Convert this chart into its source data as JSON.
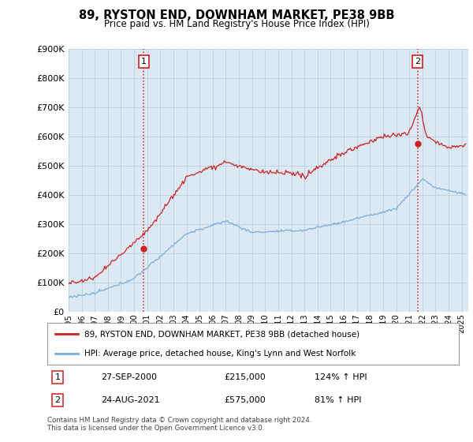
{
  "title": "89, RYSTON END, DOWNHAM MARKET, PE38 9BB",
  "subtitle": "Price paid vs. HM Land Registry's House Price Index (HPI)",
  "ylim": [
    0,
    900000
  ],
  "xlim_start": 1995.0,
  "xlim_end": 2025.5,
  "chart_bg_color": "#dce9f5",
  "fig_bg_color": "#ffffff",
  "hpi_line_color": "#7aaed6",
  "price_line_color": "#cc2222",
  "vline_color": "#cc2222",
  "transaction1_x": 2000.74,
  "transaction1_y": 215000,
  "transaction2_x": 2021.64,
  "transaction2_y": 575000,
  "legend_red_label": "89, RYSTON END, DOWNHAM MARKET, PE38 9BB (detached house)",
  "legend_blue_label": "HPI: Average price, detached house, King's Lynn and West Norfolk",
  "table_row1": [
    "1",
    "27-SEP-2000",
    "£215,000",
    "124% ↑ HPI"
  ],
  "table_row2": [
    "2",
    "24-AUG-2021",
    "£575,000",
    "81% ↑ HPI"
  ],
  "footnote": "Contains HM Land Registry data © Crown copyright and database right 2024.\nThis data is licensed under the Open Government Licence v3.0.",
  "grid_color": "#b8cfe0"
}
